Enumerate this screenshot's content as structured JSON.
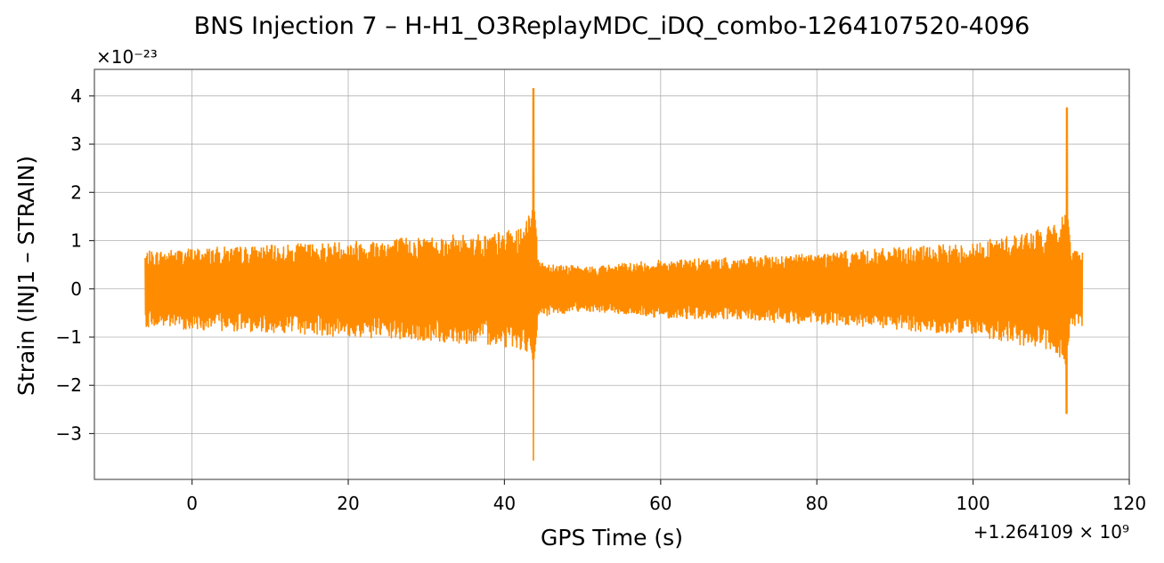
{
  "chart_data": {
    "type": "line",
    "title": "BNS Injection 7 – H-H1_O3ReplayMDC_iDQ_combo-1264107520-4096",
    "xlabel": "GPS Time (s)",
    "ylabel": "Strain (INJ1 – STRAIN)",
    "x_offset_label": "+1.264109 × 10⁹",
    "y_scale_label": "×10⁻²³",
    "xlim": [
      -12.5,
      120
    ],
    "ylim": [
      -3.95,
      4.55
    ],
    "x_ticks": [
      0,
      20,
      40,
      60,
      80,
      100,
      120
    ],
    "x_tick_labels": [
      "0",
      "20",
      "40",
      "60",
      "80",
      "100",
      "120"
    ],
    "y_ticks": [
      -3,
      -2,
      -1,
      0,
      1,
      2,
      3,
      4
    ],
    "y_tick_labels": [
      "−3",
      "−2",
      "−1",
      "0",
      "1",
      "2",
      "3",
      "4"
    ],
    "grid": true,
    "line_color": "#ff8c00",
    "series": [
      {
        "x_range": [
          -6,
          114
        ],
        "amplitude_envelope": [
          [
            -6,
            0.78
          ],
          [
            0,
            0.85
          ],
          [
            10,
            0.9
          ],
          [
            20,
            1.0
          ],
          [
            30,
            1.1
          ],
          [
            38,
            1.15
          ],
          [
            42,
            1.25
          ],
          [
            43.5,
            1.6
          ],
          [
            44,
            0.6
          ],
          [
            50,
            0.45
          ],
          [
            60,
            0.6
          ],
          [
            70,
            0.65
          ],
          [
            80,
            0.75
          ],
          [
            90,
            0.85
          ],
          [
            100,
            0.95
          ],
          [
            110,
            1.3
          ],
          [
            111.8,
            1.6
          ],
          [
            112.5,
            0.85
          ],
          [
            114,
            0.8
          ]
        ],
        "spikes": [
          {
            "x": 43.7,
            "max": 4.15,
            "min": -3.55
          },
          {
            "x": 112.0,
            "max": 3.75,
            "min": -2.58
          }
        ]
      }
    ]
  }
}
